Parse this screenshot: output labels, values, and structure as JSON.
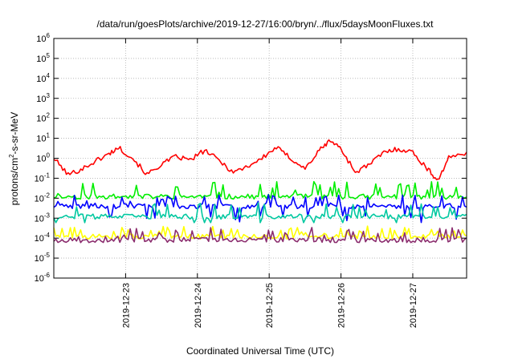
{
  "chart_data": {
    "type": "line",
    "title": "/data/run/goesPlots/archive/2019-12-27/16:00/bryn/../flux/5daysMoonFluxes.txt",
    "xlabel": "Coordinated Universal Time (UTC)",
    "ylabel": "protons/cm²-s-sr-MeV",
    "yscale": "log",
    "ylim": [
      1e-06,
      1000000.0
    ],
    "xlim": [
      0,
      5.75
    ],
    "x_ticks": [
      {
        "pos": 1,
        "label": "2019-12-23"
      },
      {
        "pos": 2,
        "label": "2019-12-24"
      },
      {
        "pos": 3,
        "label": "2019-12-25"
      },
      {
        "pos": 4,
        "label": "2019-12-26"
      },
      {
        "pos": 5,
        "label": "2019-12-27"
      }
    ],
    "y_ticks": [
      {
        "exp": -6
      },
      {
        "exp": -5
      },
      {
        "exp": -4
      },
      {
        "exp": -3
      },
      {
        "exp": -2
      },
      {
        "exp": -1
      },
      {
        "exp": 0
      },
      {
        "exp": 1
      },
      {
        "exp": 2
      },
      {
        "exp": 3
      },
      {
        "exp": 4
      },
      {
        "exp": 5
      },
      {
        "exp": 6
      }
    ],
    "grid": true,
    "series": [
      {
        "color": "#ff0000",
        "style": "smooth",
        "x": [
          0,
          0.2,
          0.4,
          0.6,
          0.75,
          0.9,
          1.1,
          1.3,
          1.5,
          1.7,
          1.9,
          2.1,
          2.3,
          2.5,
          2.7,
          2.9,
          3.1,
          3.3,
          3.5,
          3.7,
          3.85,
          4.0,
          4.2,
          4.4,
          4.6,
          4.8,
          5.0,
          5.2,
          5.35,
          5.5,
          5.75
        ],
        "y": [
          1.0,
          0.15,
          0.3,
          0.8,
          1.5,
          3.5,
          1.0,
          0.15,
          0.5,
          1.2,
          0.8,
          2.5,
          0.8,
          0.2,
          0.4,
          1.0,
          3.5,
          1.0,
          0.3,
          2.5,
          8.0,
          3.0,
          0.2,
          0.5,
          2.0,
          3.0,
          2.0,
          0.3,
          0.08,
          1.0,
          2.0
        ]
      },
      {
        "color": "#00ee00",
        "style": "spiky",
        "x0": 0,
        "x1": 5.75,
        "n": 200,
        "base": 0.012,
        "spike": 0.07,
        "seed": 11
      },
      {
        "color": "#0000ff",
        "style": "spiky",
        "x0": 0,
        "x1": 5.75,
        "n": 200,
        "base": 0.004,
        "spike": 0.015,
        "dip": 0.001,
        "seed": 23
      },
      {
        "color": "#00c8a0",
        "style": "noisy",
        "x0": 0,
        "x1": 5.75,
        "n": 200,
        "base": 0.0012,
        "seed": 37
      },
      {
        "color": "#ffff00",
        "style": "spiky",
        "x0": 0,
        "x1": 5.75,
        "n": 200,
        "base": 0.00012,
        "spike": 0.0004,
        "seed": 51
      },
      {
        "color": "#8b2d6e",
        "style": "spiky",
        "x0": 0,
        "x1": 5.75,
        "n": 200,
        "base": 8e-05,
        "spike": 0.00035,
        "seed": 67
      }
    ]
  }
}
